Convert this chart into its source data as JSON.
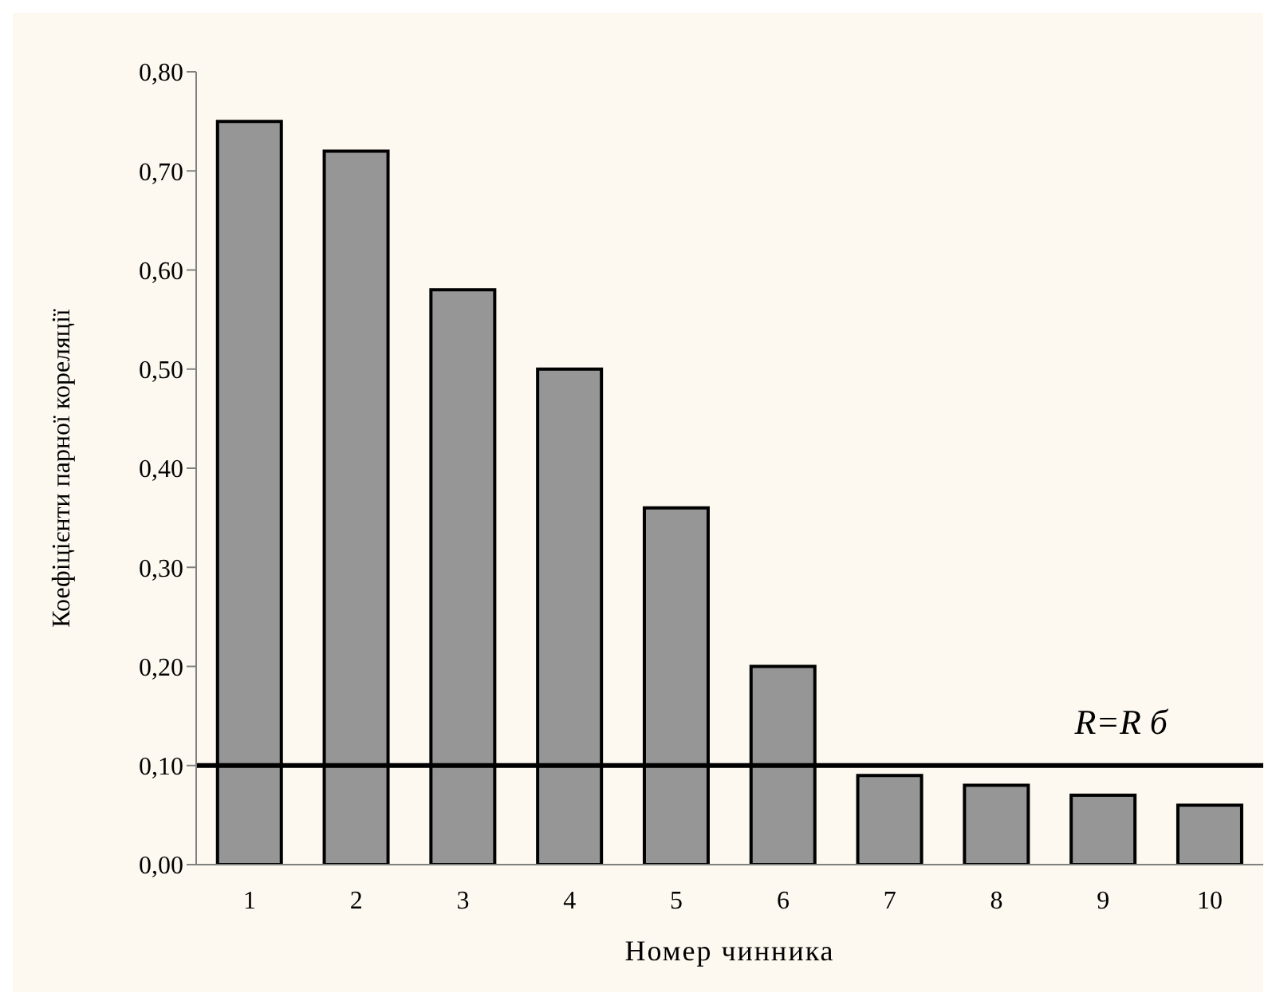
{
  "chart_data": {
    "type": "bar",
    "xlabel": "Номер чинника",
    "ylabel": "Коефіцієнти парної кореляції",
    "categories": [
      "1",
      "2",
      "3",
      "4",
      "5",
      "6",
      "7",
      "8",
      "9",
      "10"
    ],
    "values": [
      0.75,
      0.72,
      0.58,
      0.5,
      0.36,
      0.2,
      0.09,
      0.08,
      0.07,
      0.06
    ],
    "color": "#969696",
    "ylim": [
      0,
      0.8
    ],
    "yticks": [
      {
        "value": 0,
        "label": "0,00"
      },
      {
        "value": 0.1,
        "label": "0,10"
      },
      {
        "value": 0.2,
        "label": "0,20"
      },
      {
        "value": 0.3,
        "label": "0,30"
      },
      {
        "value": 0.4,
        "label": "0,40"
      },
      {
        "value": 0.5,
        "label": "0,50"
      },
      {
        "value": 0.6,
        "label": "0,60"
      },
      {
        "value": 0.7,
        "label": "0,70"
      },
      {
        "value": 0.8,
        "label": "0,80"
      }
    ],
    "ref_lines": [
      {
        "axis": "y",
        "value": 0.1,
        "label": "R=R б",
        "color": "#000000"
      }
    ],
    "grid": false,
    "legend": false
  }
}
